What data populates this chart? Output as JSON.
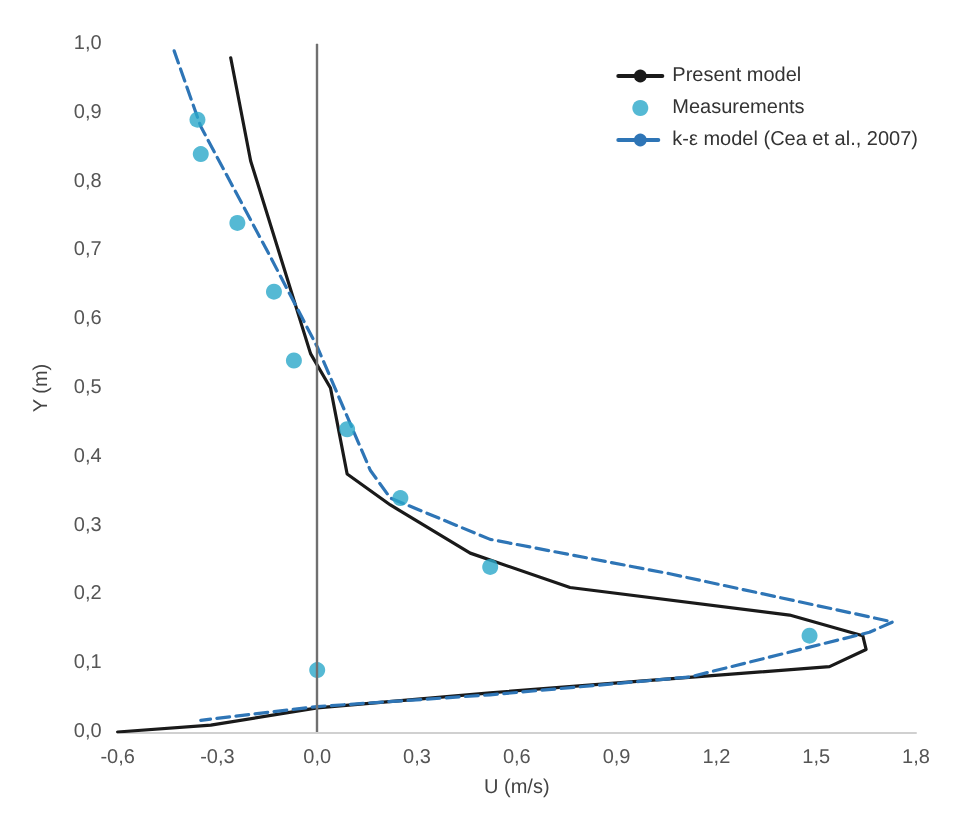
{
  "chart_data": {
    "type": "line",
    "xlabel": "U (m/s)",
    "ylabel": "Y (m)",
    "series": [
      {
        "name": "Present model",
        "color": "#1a1a1a",
        "line_style": "solid",
        "marker": "none",
        "x": [
          -0.26,
          -0.2,
          -0.02,
          0.04,
          0.09,
          0.22,
          0.46,
          0.76,
          1.42,
          1.64,
          1.65,
          1.54,
          1.0,
          0.52,
          0,
          -0.32,
          -0.6
        ],
        "values": [
          0.98,
          0.83,
          0.55,
          0.5,
          0.375,
          0.33,
          0.26,
          0.21,
          0.17,
          0.14,
          0.12,
          0.095,
          0.075,
          0.057,
          0.035,
          0.01,
          0.0
        ]
      },
      {
        "name": "Measurements",
        "type": "scatter",
        "color": "#2aa7c9",
        "marker": "circle",
        "x": [
          -0.36,
          -0.35,
          -0.24,
          -0.13,
          -0.07,
          0.09,
          0.25,
          0.52,
          1.48,
          0
        ],
        "values": [
          0.89,
          0.84,
          0.74,
          0.64,
          0.54,
          0.44,
          0.34,
          0.24,
          0.14,
          0.09
        ]
      },
      {
        "name": "k-ε model (Cea et al., 2007)",
        "color": "#2e75b6",
        "line_style": "dashed",
        "marker": "none",
        "x": [
          -0.43,
          -0.35,
          -0.14,
          0,
          0.16,
          0.22,
          0.52,
          1.06,
          1.73,
          1.66,
          1.12,
          0.52,
          0,
          -0.35
        ],
        "values": [
          0.99,
          0.88,
          0.69,
          0.56,
          0.38,
          0.34,
          0.28,
          0.23,
          0.16,
          0.145,
          0.08,
          0.054,
          0.037,
          0.017
        ]
      }
    ],
    "xlim": [
      -0.6,
      1.8
    ],
    "xticks": [
      {
        "value": -0.6,
        "label": "-0,6"
      },
      {
        "value": -0.3,
        "label": "-0,3"
      },
      {
        "value": 0,
        "label": "0,0"
      },
      {
        "value": 0.3,
        "label": "0,3"
      },
      {
        "value": 0.6,
        "label": "0,6"
      },
      {
        "value": 0.9,
        "label": "0,9"
      },
      {
        "value": 1.2,
        "label": "1,2"
      },
      {
        "value": 1.5,
        "label": "1,5"
      },
      {
        "value": 1.8,
        "label": "1,8"
      }
    ],
    "ylim": [
      0,
      1
    ],
    "yticks": [
      {
        "value": 0,
        "label": "0,0"
      },
      {
        "value": 0.1,
        "label": "0,1"
      },
      {
        "value": 0.2,
        "label": "0,2"
      },
      {
        "value": 0.3,
        "label": "0,3"
      },
      {
        "value": 0.4,
        "label": "0,4"
      },
      {
        "value": 0.5,
        "label": "0,5"
      },
      {
        "value": 0.6,
        "label": "0,6"
      },
      {
        "value": 0.7,
        "label": "0,7"
      },
      {
        "value": 0.8,
        "label": "0,8"
      },
      {
        "value": 0.9,
        "label": "0,9"
      },
      {
        "value": 1,
        "label": "1,0"
      }
    ],
    "ref_lines": [
      {
        "axis": "x",
        "value": 0,
        "color": "#707070",
        "line_style": "solid"
      }
    ],
    "grid": false,
    "legend": "top right"
  }
}
